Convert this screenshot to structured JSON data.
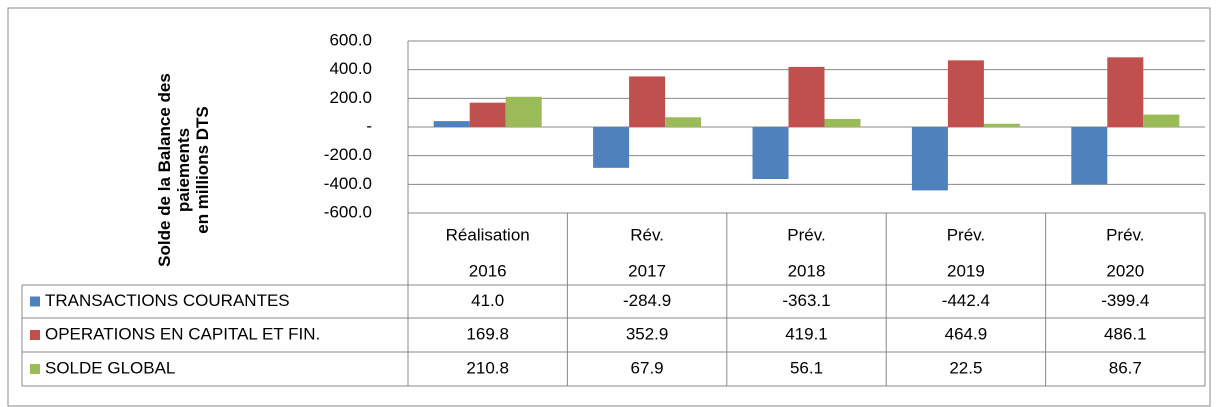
{
  "chart_data": {
    "type": "bar",
    "y_label": [
      "Solde de la Balance des",
      "paiements",
      "en millions DTS"
    ],
    "categories": [
      [
        "Réalisation",
        "2016"
      ],
      [
        "Rév.",
        "2017"
      ],
      [
        "Prév.",
        "2018"
      ],
      [
        "Prév.",
        "2019"
      ],
      [
        "Prév.",
        "2020"
      ]
    ],
    "series": [
      {
        "name": "TRANSACTIONS COURANTES",
        "color": "#4f81bd",
        "values": [
          41.0,
          -284.9,
          -363.1,
          -442.4,
          -399.4
        ],
        "value_labels": [
          "41.0",
          "-284.9",
          "-363.1",
          "-442.4",
          "-399.4"
        ]
      },
      {
        "name": "OPERATIONS EN CAPITAL ET FIN.",
        "color": "#c0504d",
        "values": [
          169.8,
          352.9,
          419.1,
          464.9,
          486.1
        ],
        "value_labels": [
          "169.8",
          "352.9",
          "419.1",
          "464.9",
          "486.1"
        ]
      },
      {
        "name": "SOLDE GLOBAL",
        "color": "#9bbb59",
        "values": [
          210.8,
          67.9,
          56.1,
          22.5,
          86.7
        ],
        "value_labels": [
          "210.8",
          "67.9",
          "56.1",
          "22.5",
          "86.7"
        ]
      }
    ],
    "ylim": [
      -600,
      600
    ],
    "yticks": [
      {
        "value": 600,
        "label": "600.0"
      },
      {
        "value": 400,
        "label": "400.0"
      },
      {
        "value": 200,
        "label": "200.0"
      },
      {
        "value": 0,
        "label": "-"
      },
      {
        "value": -200,
        "label": "-200.0"
      },
      {
        "value": -400,
        "label": "-400.0"
      },
      {
        "value": -600,
        "label": "-600.0"
      }
    ],
    "grid": true
  }
}
